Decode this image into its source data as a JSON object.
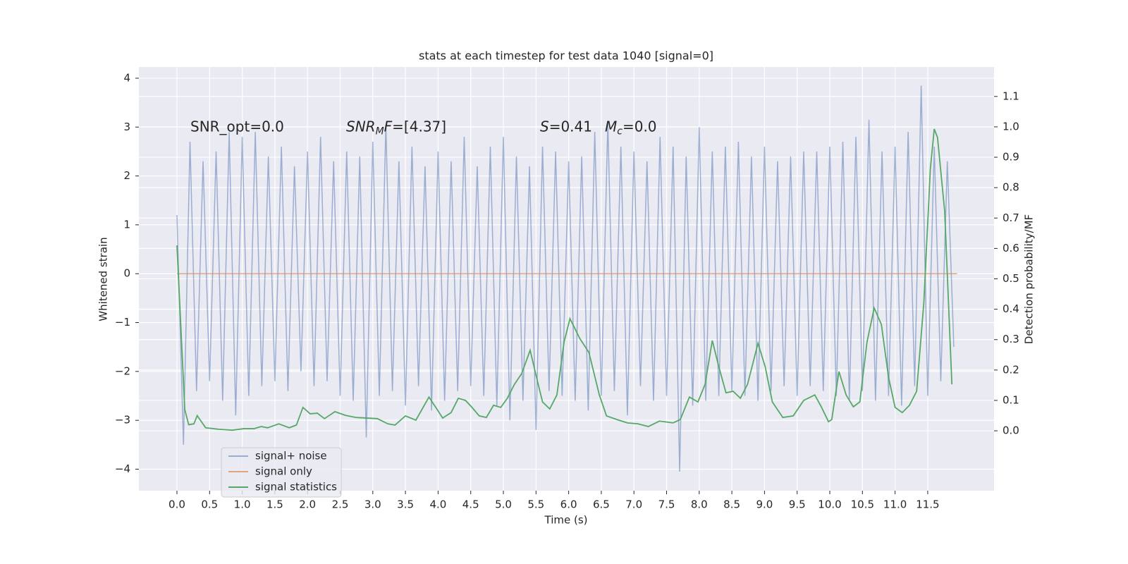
{
  "chart_data": {
    "type": "line",
    "title": "stats at each timestep for test data 1040 [signal=0]",
    "xlabel": "Time (s)",
    "ylabel": "Whitened strain",
    "y2label": "Detection probability/MF",
    "xlim": [
      -0.583,
      12.516
    ],
    "ylim": [
      -4.44,
      4.23
    ],
    "y2lim": [
      -0.197,
      1.197
    ],
    "xticks": [
      {
        "value": 0,
        "label": "0.0"
      },
      {
        "value": 0.5,
        "label": "0.5"
      },
      {
        "value": 1,
        "label": "1.0"
      },
      {
        "value": 1.5,
        "label": "1.5"
      },
      {
        "value": 2,
        "label": "2.0"
      },
      {
        "value": 2.5,
        "label": "2.5"
      },
      {
        "value": 3,
        "label": "3.0"
      },
      {
        "value": 3.5,
        "label": "3.5"
      },
      {
        "value": 4,
        "label": "4.0"
      },
      {
        "value": 4.5,
        "label": "4.5"
      },
      {
        "value": 5,
        "label": "5.0"
      },
      {
        "value": 5.5,
        "label": "5.5"
      },
      {
        "value": 6,
        "label": "6.0"
      },
      {
        "value": 6.5,
        "label": "6.5"
      },
      {
        "value": 7,
        "label": "7.0"
      },
      {
        "value": 7.5,
        "label": "7.5"
      },
      {
        "value": 8,
        "label": "8.0"
      },
      {
        "value": 8.5,
        "label": "8.5"
      },
      {
        "value": 9,
        "label": "9.0"
      },
      {
        "value": 9.5,
        "label": "9.5"
      },
      {
        "value": 10,
        "label": "10.0"
      },
      {
        "value": 10.5,
        "label": "10.5"
      },
      {
        "value": 11,
        "label": "11.0"
      },
      {
        "value": 11.5,
        "label": "11.5"
      }
    ],
    "yticks": [
      {
        "value": -4,
        "label": "−4"
      },
      {
        "value": -3,
        "label": "−3"
      },
      {
        "value": -2,
        "label": "−2"
      },
      {
        "value": -1,
        "label": "−1"
      },
      0,
      1,
      2,
      3,
      4
    ],
    "y2ticks": [
      {
        "value": 0,
        "label": "0.0"
      },
      {
        "value": 0.1,
        "label": "0.1"
      },
      {
        "value": 0.2,
        "label": "0.2"
      },
      {
        "value": 0.3,
        "label": "0.3"
      },
      {
        "value": 0.4,
        "label": "0.4"
      },
      {
        "value": 0.5,
        "label": "0.5"
      },
      {
        "value": 0.6,
        "label": "0.6"
      },
      {
        "value": 0.7,
        "label": "0.7"
      },
      {
        "value": 0.8,
        "label": "0.8"
      },
      {
        "value": 0.9,
        "label": "0.9"
      },
      {
        "value": 1,
        "label": "1.0"
      },
      {
        "value": 1.1,
        "label": "1.1"
      }
    ],
    "grid": true,
    "legend": "lower left",
    "annotations": [
      {
        "parts": [
          {
            "text": "SNR_opt=0.0",
            "italic": false,
            "sub": false
          }
        ]
      },
      {
        "parts": [
          {
            "text": "SNR",
            "italic": true,
            "sub": false
          },
          {
            "text": "M",
            "italic": true,
            "sub": true
          },
          {
            "text": "F",
            "italic": true,
            "sub": false
          },
          {
            "text": "=[4.37]",
            "italic": false,
            "sub": false
          }
        ]
      },
      {
        "parts": [
          {
            "text": "S",
            "italic": true,
            "sub": false
          },
          {
            "text": "=0.41",
            "italic": false,
            "sub": false
          }
        ]
      },
      {
        "parts": [
          {
            "text": "M",
            "italic": true,
            "sub": false
          },
          {
            "text": "c",
            "italic": true,
            "sub": true
          },
          {
            "text": "=0.0",
            "italic": false,
            "sub": false
          }
        ]
      }
    ],
    "series": [
      {
        "name": "signal+ noise",
        "color": "#4c72b0",
        "opacity": 0.5,
        "axis": "y",
        "x": [
          0.0,
          0.1,
          0.2,
          0.3,
          0.4,
          0.5,
          0.6,
          0.7,
          0.8,
          0.9,
          1.0,
          1.1,
          1.2,
          1.3,
          1.4,
          1.5,
          1.6,
          1.7,
          1.8,
          1.9,
          2.0,
          2.1,
          2.2,
          2.3,
          2.4,
          2.5,
          2.6,
          2.7,
          2.8,
          2.9,
          3.0,
          3.1,
          3.2,
          3.3,
          3.4,
          3.5,
          3.6,
          3.7,
          3.8,
          3.9,
          4.0,
          4.1,
          4.2,
          4.3,
          4.4,
          4.5,
          4.6,
          4.7,
          4.8,
          4.9,
          5.0,
          5.1,
          5.2,
          5.3,
          5.4,
          5.5,
          5.6,
          5.7,
          5.8,
          5.9,
          6.0,
          6.1,
          6.2,
          6.3,
          6.4,
          6.5,
          6.6,
          6.7,
          6.8,
          6.9,
          7.0,
          7.1,
          7.2,
          7.3,
          7.4,
          7.5,
          7.6,
          7.7,
          7.8,
          7.9,
          8.0,
          8.1,
          8.2,
          8.3,
          8.4,
          8.5,
          8.6,
          8.7,
          8.8,
          8.9,
          9.0,
          9.1,
          9.2,
          9.3,
          9.4,
          9.5,
          9.6,
          9.7,
          9.8,
          9.9,
          10.0,
          10.1,
          10.2,
          10.3,
          10.4,
          10.5,
          10.6,
          10.7,
          10.8,
          10.9,
          11.0,
          11.1,
          11.2,
          11.3,
          11.4,
          11.5,
          11.6,
          11.7,
          11.8,
          11.9
        ],
        "values": [
          1.2,
          -3.5,
          2.7,
          -2.4,
          2.3,
          -2.2,
          2.5,
          -2.6,
          2.9,
          -2.9,
          2.8,
          -2.5,
          2.9,
          -2.3,
          2.4,
          -2.2,
          2.6,
          -2.4,
          2.2,
          -2.0,
          2.5,
          -2.3,
          2.8,
          -2.2,
          2.3,
          -2.5,
          2.5,
          -2.6,
          2.4,
          -3.35,
          2.7,
          -2.5,
          3.05,
          -2.4,
          2.3,
          -2.7,
          2.6,
          -2.3,
          2.2,
          -2.8,
          2.5,
          -2.6,
          2.3,
          -2.4,
          2.8,
          -2.3,
          2.2,
          -2.5,
          2.6,
          -2.7,
          2.8,
          -3.0,
          2.4,
          -2.6,
          2.2,
          -3.2,
          2.6,
          -2.4,
          2.5,
          -2.5,
          2.3,
          -2.6,
          2.4,
          -2.8,
          2.9,
          -2.5,
          3.1,
          -2.4,
          2.6,
          -2.9,
          2.5,
          -2.3,
          2.3,
          -2.6,
          2.8,
          -2.5,
          2.6,
          -4.05,
          2.4,
          -2.7,
          3.0,
          -2.6,
          2.5,
          -2.5,
          2.6,
          -2.4,
          2.7,
          -2.5,
          2.4,
          -2.6,
          2.6,
          -2.4,
          2.3,
          -2.3,
          2.4,
          -2.5,
          2.5,
          -2.3,
          2.5,
          -2.4,
          2.6,
          -2.5,
          2.7,
          -2.6,
          2.8,
          -2.4,
          3.15,
          -2.6,
          2.5,
          -2.5,
          2.6,
          -2.7,
          2.9,
          -2.3,
          3.85,
          -2.5,
          2.6,
          -2.2,
          2.3,
          -1.5
        ]
      },
      {
        "name": "signal only",
        "color": "#dd8452",
        "opacity": 0.7,
        "axis": "y",
        "x": [
          0.0,
          11.95
        ],
        "values": [
          0,
          0
        ]
      },
      {
        "name": "signal statistics",
        "color": "#55a868",
        "opacity": 1,
        "axis": "y2",
        "x": [
          0.0,
          0.12,
          0.18,
          0.26,
          0.31,
          0.44,
          0.64,
          0.85,
          1.02,
          1.18,
          1.29,
          1.39,
          1.56,
          1.72,
          1.83,
          1.93,
          2.04,
          2.15,
          2.26,
          2.42,
          2.58,
          2.74,
          2.9,
          3.07,
          3.23,
          3.34,
          3.5,
          3.66,
          3.86,
          3.98,
          4.07,
          4.2,
          4.31,
          4.42,
          4.52,
          4.63,
          4.74,
          4.85,
          4.96,
          5.06,
          5.17,
          5.28,
          5.41,
          5.52,
          5.6,
          5.71,
          5.82,
          5.93,
          6.02,
          6.09,
          6.17,
          6.31,
          6.47,
          6.58,
          6.74,
          6.9,
          7.06,
          7.22,
          7.39,
          7.6,
          7.71,
          7.85,
          7.98,
          8.09,
          8.2,
          8.3,
          8.41,
          8.52,
          8.63,
          8.74,
          8.9,
          9.01,
          9.12,
          9.28,
          9.44,
          9.6,
          9.77,
          9.87,
          9.98,
          10.03,
          10.14,
          10.25,
          10.36,
          10.46,
          10.57,
          10.68,
          10.79,
          10.9,
          11.0,
          11.11,
          11.22,
          11.33,
          11.44,
          11.54,
          11.6,
          11.65,
          11.76,
          11.87
        ],
        "values": [
          0.61,
          0.07,
          0.02,
          0.023,
          0.05,
          0.01,
          0.005,
          0.002,
          0.007,
          0.007,
          0.014,
          0.01,
          0.023,
          0.01,
          0.019,
          0.077,
          0.056,
          0.058,
          0.04,
          0.063,
          0.051,
          0.044,
          0.042,
          0.04,
          0.023,
          0.019,
          0.049,
          0.035,
          0.111,
          0.072,
          0.042,
          0.06,
          0.107,
          0.1,
          0.077,
          0.049,
          0.044,
          0.084,
          0.077,
          0.107,
          0.153,
          0.188,
          0.265,
          0.165,
          0.095,
          0.072,
          0.118,
          0.292,
          0.369,
          0.339,
          0.304,
          0.258,
          0.118,
          0.049,
          0.037,
          0.026,
          0.023,
          0.014,
          0.032,
          0.026,
          0.037,
          0.111,
          0.095,
          0.153,
          0.297,
          0.211,
          0.125,
          0.13,
          0.107,
          0.153,
          0.288,
          0.211,
          0.095,
          0.044,
          0.049,
          0.1,
          0.118,
          0.079,
          0.03,
          0.037,
          0.195,
          0.118,
          0.079,
          0.095,
          0.292,
          0.404,
          0.35,
          0.176,
          0.077,
          0.06,
          0.084,
          0.13,
          0.42,
          0.861,
          0.993,
          0.965,
          0.722,
          0.153
        ]
      }
    ]
  }
}
